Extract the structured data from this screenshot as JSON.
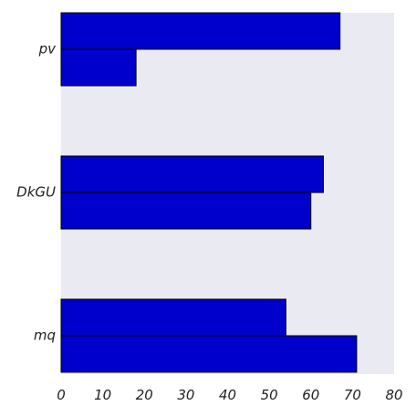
{
  "chart_data": {
    "type": "bar",
    "orientation": "horizontal",
    "categories": [
      "pv",
      "DkGU",
      "mq"
    ],
    "series": [
      {
        "values": [
          67,
          63,
          54
        ]
      },
      {
        "values": [
          18,
          60,
          71
        ]
      }
    ],
    "xlim": [
      0,
      80
    ],
    "xticks": [
      "0",
      "10",
      "20",
      "30",
      "40",
      "50",
      "60",
      "70",
      "80"
    ],
    "grid": false,
    "legend": "none",
    "colors": {
      "plot_background": "#eaeaf2",
      "bar_fill": "#0000cd",
      "bar_edge": "#000000"
    }
  }
}
